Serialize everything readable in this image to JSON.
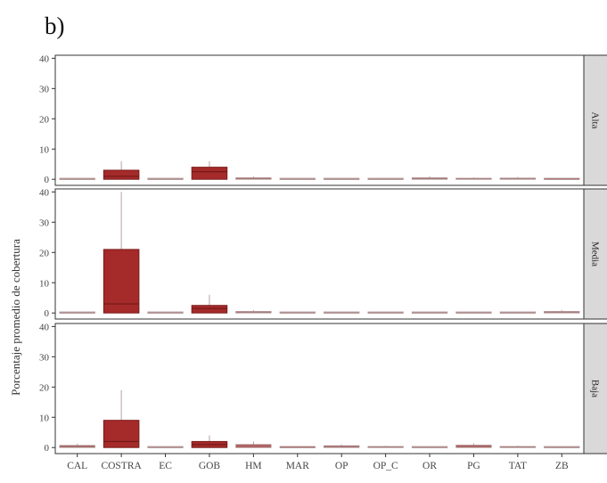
{
  "figure": {
    "panel_letter": "b)"
  },
  "chart_data": {
    "type": "boxplot",
    "ylabel": "Porcentaje promedio de cobertura",
    "xlabel": "",
    "categories": [
      "CAL",
      "COSTRA",
      "EC",
      "GOB",
      "HM",
      "MAR",
      "OP",
      "OP_C",
      "OR",
      "PG",
      "TAT",
      "ZB"
    ],
    "ylim": [
      -2,
      41
    ],
    "yticks": [
      0,
      10,
      20,
      30,
      40
    ],
    "grid": false,
    "legend": "none",
    "facets": [
      {
        "label": "Alta",
        "boxes": [
          {
            "category": "CAL",
            "q1": 0,
            "median": 0,
            "q3": 0,
            "whisker_low": 0,
            "whisker_high": 0.2
          },
          {
            "category": "COSTRA",
            "q1": 0,
            "median": 1,
            "q3": 3,
            "whisker_low": 0,
            "whisker_high": 6
          },
          {
            "category": "EC",
            "q1": 0,
            "median": 0,
            "q3": 0,
            "whisker_low": 0,
            "whisker_high": 0
          },
          {
            "category": "GOB",
            "q1": 0,
            "median": 2.5,
            "q3": 4,
            "whisker_low": 0,
            "whisker_high": 6
          },
          {
            "category": "HM",
            "q1": 0,
            "median": 0.3,
            "q3": 0.5,
            "whisker_low": 0,
            "whisker_high": 1
          },
          {
            "category": "MAR",
            "q1": 0,
            "median": 0,
            "q3": 0,
            "whisker_low": 0,
            "whisker_high": 0
          },
          {
            "category": "OP",
            "q1": 0,
            "median": 0,
            "q3": 0,
            "whisker_low": 0,
            "whisker_high": 0
          },
          {
            "category": "OP_C",
            "q1": 0,
            "median": 0,
            "q3": 0,
            "whisker_low": 0,
            "whisker_high": 0
          },
          {
            "category": "OR",
            "q1": 0,
            "median": 0.2,
            "q3": 0.5,
            "whisker_low": 0,
            "whisker_high": 1
          },
          {
            "category": "PG",
            "q1": 0,
            "median": 0.1,
            "q3": 0.3,
            "whisker_low": 0,
            "whisker_high": 0.6
          },
          {
            "category": "TAT",
            "q1": 0,
            "median": 0.2,
            "q3": 0.4,
            "whisker_low": 0,
            "whisker_high": 0.8
          },
          {
            "category": "ZB",
            "q1": 0,
            "median": 0,
            "q3": 0.2,
            "whisker_low": 0,
            "whisker_high": 0.4
          }
        ]
      },
      {
        "label": "Media",
        "boxes": [
          {
            "category": "CAL",
            "q1": 0,
            "median": 0,
            "q3": 0,
            "whisker_low": 0,
            "whisker_high": 0
          },
          {
            "category": "COSTRA",
            "q1": 0,
            "median": 3,
            "q3": 21,
            "whisker_low": 0,
            "whisker_high": 40
          },
          {
            "category": "EC",
            "q1": 0,
            "median": 0,
            "q3": 0,
            "whisker_low": 0,
            "whisker_high": 0
          },
          {
            "category": "GOB",
            "q1": 0,
            "median": 1.5,
            "q3": 2.5,
            "whisker_low": 0,
            "whisker_high": 6
          },
          {
            "category": "HM",
            "q1": 0,
            "median": 0.2,
            "q3": 0.5,
            "whisker_low": 0,
            "whisker_high": 1
          },
          {
            "category": "MAR",
            "q1": 0,
            "median": 0,
            "q3": 0,
            "whisker_low": 0,
            "whisker_high": 0
          },
          {
            "category": "OP",
            "q1": 0,
            "median": 0,
            "q3": 0,
            "whisker_low": 0,
            "whisker_high": 0
          },
          {
            "category": "OP_C",
            "q1": 0,
            "median": 0,
            "q3": 0,
            "whisker_low": 0,
            "whisker_high": 0
          },
          {
            "category": "OR",
            "q1": 0,
            "median": 0,
            "q3": 0,
            "whisker_low": 0,
            "whisker_high": 0
          },
          {
            "category": "PG",
            "q1": 0,
            "median": 0,
            "q3": 0,
            "whisker_low": 0,
            "whisker_high": 0
          },
          {
            "category": "TAT",
            "q1": 0,
            "median": 0,
            "q3": 0,
            "whisker_low": 0,
            "whisker_high": 0
          },
          {
            "category": "ZB",
            "q1": 0,
            "median": 0.2,
            "q3": 0.5,
            "whisker_low": 0,
            "whisker_high": 1
          }
        ]
      },
      {
        "label": "Baja",
        "boxes": [
          {
            "category": "CAL",
            "q1": 0,
            "median": 0.3,
            "q3": 0.7,
            "whisker_low": 0,
            "whisker_high": 1.3
          },
          {
            "category": "COSTRA",
            "q1": 0,
            "median": 2,
            "q3": 9,
            "whisker_low": 0,
            "whisker_high": 19
          },
          {
            "category": "EC",
            "q1": 0,
            "median": 0,
            "q3": 0,
            "whisker_low": 0,
            "whisker_high": 0
          },
          {
            "category": "GOB",
            "q1": 0,
            "median": 1,
            "q3": 2,
            "whisker_low": 0,
            "whisker_high": 4
          },
          {
            "category": "HM",
            "q1": 0,
            "median": 0.5,
            "q3": 1,
            "whisker_low": 0,
            "whisker_high": 2
          },
          {
            "category": "MAR",
            "q1": 0,
            "median": 0,
            "q3": 0.1,
            "whisker_low": 0,
            "whisker_high": 0.3
          },
          {
            "category": "OP",
            "q1": 0,
            "median": 0.3,
            "q3": 0.6,
            "whisker_low": 0,
            "whisker_high": 1
          },
          {
            "category": "OP_C",
            "q1": 0,
            "median": 0.1,
            "q3": 0.3,
            "whisker_low": 0,
            "whisker_high": 0.6
          },
          {
            "category": "OR",
            "q1": 0,
            "median": 0,
            "q3": 0,
            "whisker_low": 0,
            "whisker_high": 0
          },
          {
            "category": "PG",
            "q1": 0,
            "median": 0.4,
            "q3": 0.8,
            "whisker_low": 0,
            "whisker_high": 1.4
          },
          {
            "category": "TAT",
            "q1": 0,
            "median": 0.1,
            "q3": 0.3,
            "whisker_low": 0,
            "whisker_high": 0.6
          },
          {
            "category": "ZB",
            "q1": 0,
            "median": 0,
            "q3": 0,
            "whisker_low": 0,
            "whisker_high": 0
          }
        ]
      }
    ],
    "colors": {
      "box_fill": "#a52a2a",
      "box_fill_small": "#b3413f",
      "box_outline": "#7d1c1c",
      "whisker": "#b8a0a0",
      "strip_bg": "#d9d9d9",
      "axis": "#333333"
    }
  }
}
